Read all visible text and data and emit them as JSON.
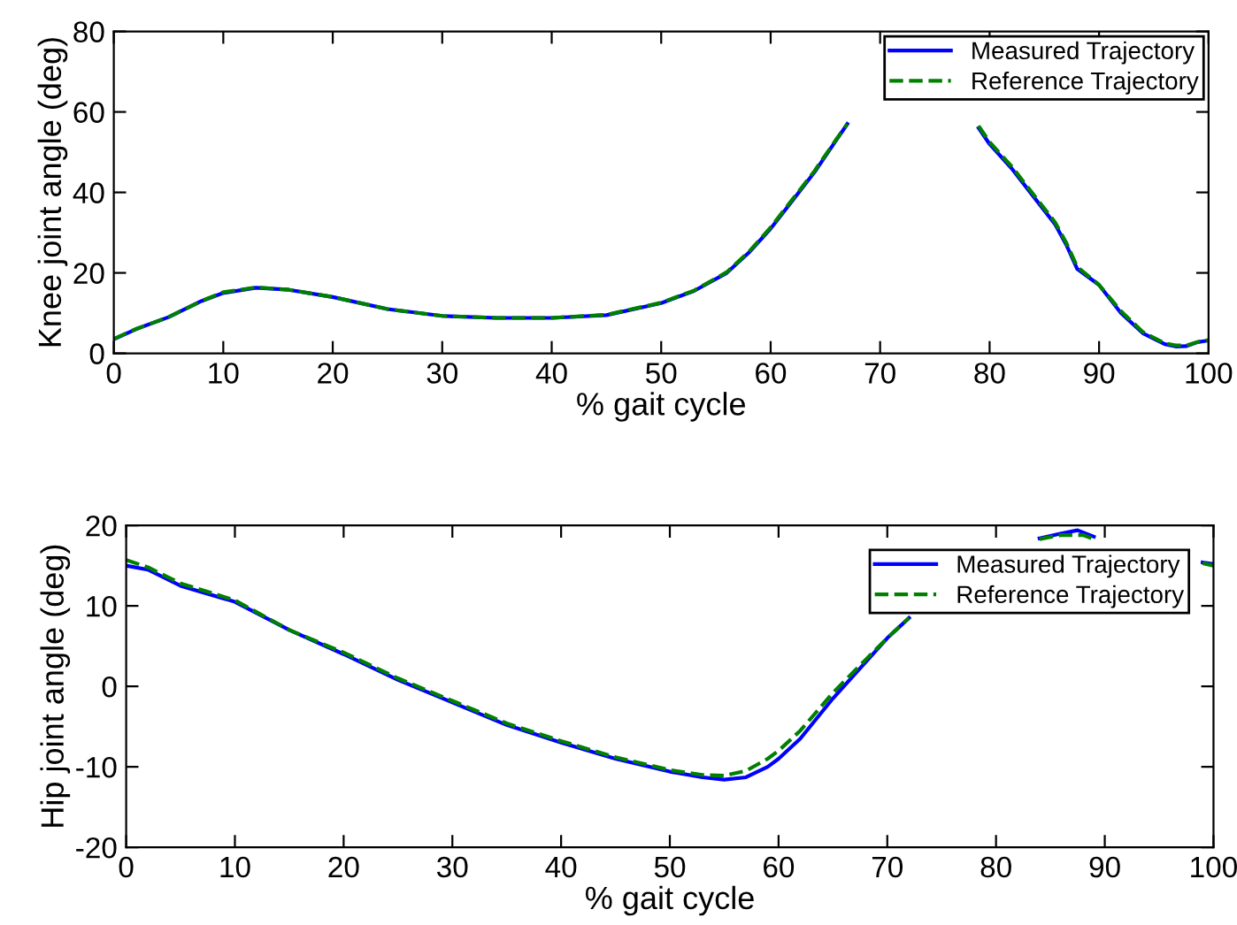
{
  "chart_data": [
    {
      "type": "line",
      "xlabel": "% gait cycle",
      "ylabel": "Knee joint angle (deg)",
      "xlim": [
        0,
        100
      ],
      "xticks": [
        0,
        10,
        20,
        30,
        40,
        50,
        60,
        70,
        80,
        90,
        100
      ],
      "ylim": [
        0,
        80
      ],
      "yticks": [
        0,
        20,
        40,
        60,
        80
      ],
      "grid": false,
      "legend": "top right",
      "series": [
        {
          "name": "Measured Trajectory",
          "color": "#0000ff",
          "line_style": "solid",
          "x": [
            0,
            2,
            5,
            8,
            10,
            13,
            16,
            20,
            25,
            30,
            35,
            40,
            45,
            50,
            53,
            56,
            58,
            60,
            62,
            64,
            66,
            67,
            72,
            79,
            80,
            82,
            84,
            86,
            87,
            88,
            90,
            92,
            94,
            96,
            97,
            98,
            99,
            100
          ],
          "values": [
            3.5,
            6,
            9,
            13,
            15,
            16.3,
            15.8,
            14,
            11,
            9.3,
            8.8,
            8.8,
            9.5,
            12.5,
            15.5,
            20,
            25,
            31,
            38,
            45,
            53,
            57,
            null,
            56,
            52,
            46,
            39,
            32,
            27,
            21,
            17,
            10,
            5,
            2.3,
            1.7,
            1.8,
            2.8,
            3.2
          ]
        },
        {
          "name": "Reference Trajectory",
          "color": "#008000",
          "line_style": "dashed",
          "x": [
            0,
            2,
            5,
            8,
            10,
            13,
            16,
            20,
            25,
            30,
            35,
            40,
            45,
            50,
            53,
            56,
            58,
            60,
            62,
            64,
            66,
            67,
            72,
            79,
            80,
            82,
            84,
            86,
            87,
            88,
            90,
            92,
            94,
            96,
            97,
            98,
            99,
            100
          ],
          "values": [
            3.6,
            6,
            9,
            13,
            15.2,
            16.4,
            15.8,
            14,
            11,
            9.3,
            8.8,
            8.8,
            9.6,
            12.6,
            15.6,
            20.2,
            25.2,
            31.3,
            38.3,
            45.3,
            53.2,
            57,
            null,
            56.5,
            52.5,
            46.5,
            39.5,
            32.5,
            27.5,
            21.5,
            17,
            10.5,
            5.3,
            2.5,
            2,
            2,
            2.8,
            3.3
          ]
        }
      ]
    },
    {
      "type": "line",
      "xlabel": "% gait cycle",
      "ylabel": "Hip joint angle (deg)",
      "xlim": [
        0,
        100
      ],
      "xticks": [
        0,
        10,
        20,
        30,
        40,
        50,
        60,
        70,
        80,
        90,
        100
      ],
      "ylim": [
        -20,
        20
      ],
      "yticks": [
        -20,
        -10,
        0,
        10,
        20
      ],
      "grid": false,
      "legend": "top right",
      "series": [
        {
          "name": "Measured Trajectory",
          "color": "#0000ff",
          "line_style": "solid",
          "x": [
            0,
            2,
            5,
            10,
            15,
            20,
            25,
            30,
            35,
            40,
            45,
            50,
            53,
            55,
            57,
            59,
            60,
            62,
            65,
            68,
            70,
            72,
            78,
            84,
            86,
            87.5,
            89,
            94,
            99,
            100
          ],
          "values": [
            15,
            14.5,
            12.5,
            10.5,
            7,
            4,
            0.8,
            -2,
            -4.8,
            -7,
            -9,
            -10.6,
            -11.3,
            -11.6,
            -11.3,
            -10,
            -9,
            -6.5,
            -1.5,
            3,
            6,
            8.5,
            null,
            18.4,
            19,
            19.4,
            18.6,
            null,
            15.4,
            15.2
          ]
        },
        {
          "name": "Reference Trajectory",
          "color": "#008000",
          "line_style": "dashed",
          "x": [
            0,
            2,
            5,
            10,
            15,
            20,
            25,
            30,
            35,
            40,
            45,
            50,
            53,
            55,
            57,
            59,
            60,
            62,
            65,
            68,
            70,
            72,
            78,
            84,
            86,
            88,
            89,
            94,
            99,
            100
          ],
          "values": [
            15.7,
            14.8,
            12.8,
            10.7,
            7,
            4.2,
            1,
            -1.8,
            -4.6,
            -6.8,
            -8.8,
            -10.4,
            -11,
            -11.1,
            -10.5,
            -9,
            -8,
            -5.5,
            -0.8,
            3.3,
            6,
            8.5,
            null,
            18.3,
            18.8,
            18.8,
            18.3,
            null,
            15.3,
            15
          ]
        }
      ]
    }
  ]
}
